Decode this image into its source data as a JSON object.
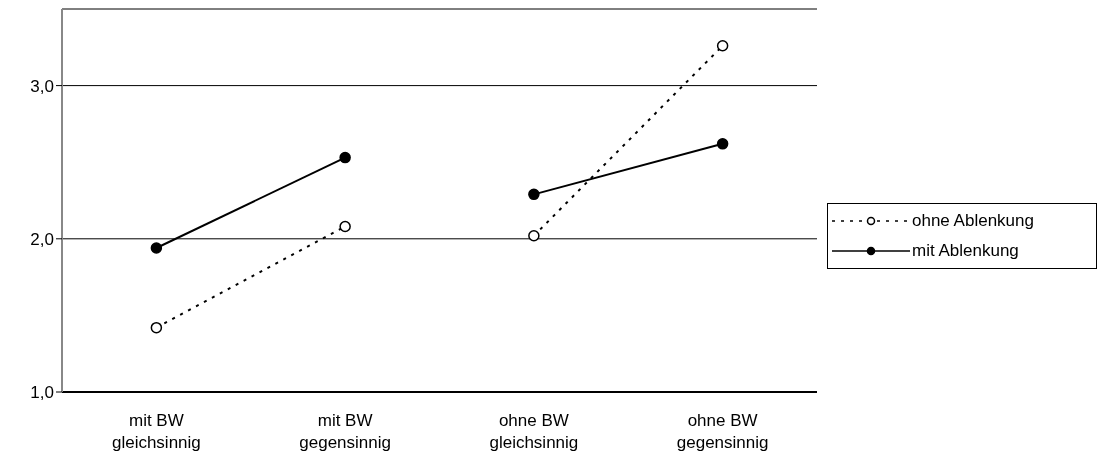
{
  "chart_data": {
    "type": "line",
    "categories": [
      "mit BW gleichsinnig",
      "mit BW gegensinnig",
      "ohne BW gleichsinnig",
      "ohne BW gegensinnig"
    ],
    "series": [
      {
        "name": "ohne Ablenkung",
        "color": "#000000",
        "line_style": "dotted",
        "values": [
          1.42,
          2.08,
          null,
          null
        ]
      },
      {
        "name": "mit Ablenkung",
        "color": "#000000",
        "line_style": "solid",
        "values": [
          1.94,
          2.53,
          null,
          null
        ]
      },
      {
        "color": "#000000",
        "line_style": "dotted",
        "values": [
          null,
          null,
          2.02,
          3.26
        ]
      },
      {
        "color": "#000000",
        "line_style": "solid",
        "values": [
          null,
          null,
          2.29,
          2.62
        ]
      }
    ],
    "ylim": [
      1,
      3.5
    ],
    "yticks": [
      {
        "value": 1,
        "label": "1,0"
      },
      {
        "value": 2,
        "label": "2,0"
      },
      {
        "value": 3,
        "label": "3,0"
      }
    ],
    "grid": "y",
    "legend": "right",
    "marker": "circle"
  }
}
